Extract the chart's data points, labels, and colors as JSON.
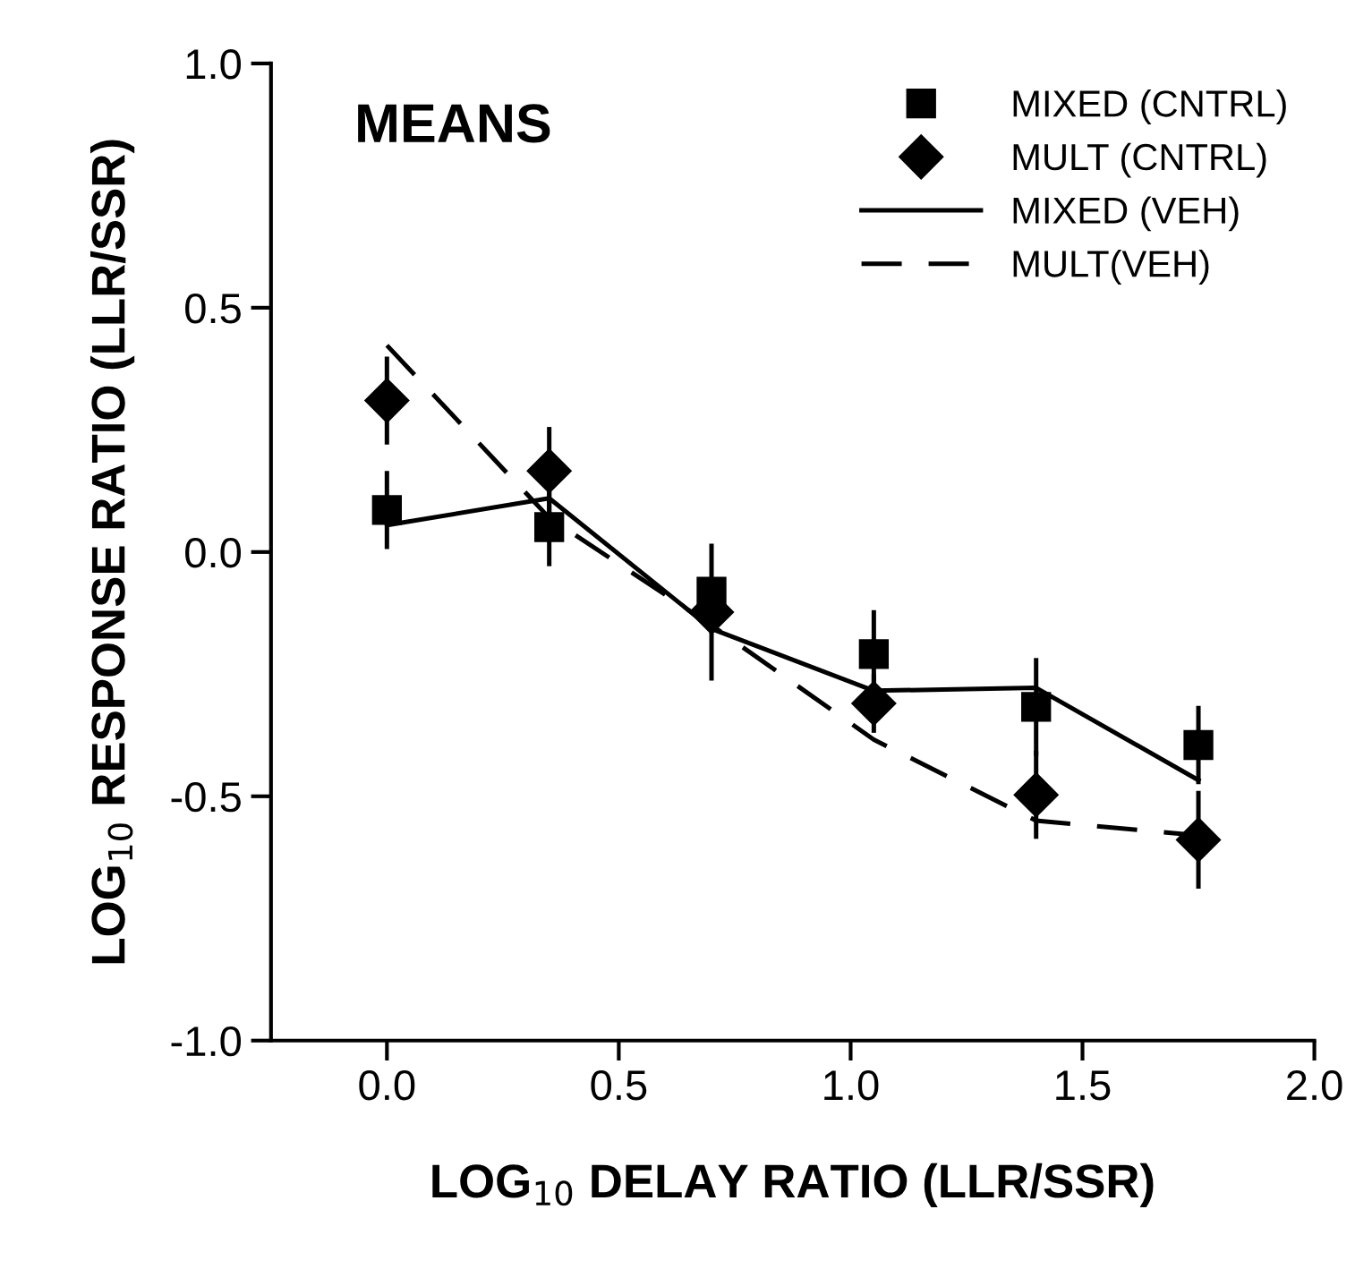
{
  "chart_data": {
    "type": "scatter",
    "xlabel": "LOG$_{10}$ DELAY RATIO (LLR/SSR)",
    "ylabel": "LOG$_{10}$ RESPONSE RATIO (LLR/SSR)",
    "annotations": [
      "MEANS"
    ],
    "x": [
      0,
      0.35,
      0.7,
      1.05,
      1.4,
      1.75
    ],
    "xlim": [
      -0.25,
      2.0
    ],
    "xticks": [
      {
        "value": 0,
        "label": "0.0"
      },
      0.5,
      {
        "value": 1,
        "label": "1.0"
      },
      1.5,
      {
        "value": 2,
        "label": "2.0"
      }
    ],
    "ylim": [
      -1.0,
      1.0
    ],
    "yticks": [
      {
        "value": -1,
        "label": "-1.0"
      },
      -0.5,
      {
        "value": 0,
        "label": "0.0"
      },
      0.5,
      {
        "value": 1,
        "label": "1.0"
      }
    ],
    "grid": false,
    "legend": "top right",
    "series": [
      {
        "name": "MIXED (CNTRL)",
        "marker": "square",
        "color": "#000000",
        "values": [
          0.086,
          0.051,
          -0.081,
          -0.209,
          -0.317,
          -0.395
        ],
        "errors": [
          0.08,
          0.08,
          null,
          0.09,
          0.1,
          0.08
        ]
      },
      {
        "name": "MULT (CNTRL)",
        "marker": "diamond",
        "color": "#000000",
        "values": [
          0.31,
          0.166,
          -0.123,
          -0.31,
          -0.497,
          -0.589
        ],
        "errors": [
          0.09,
          0.09,
          0.14,
          0.06,
          0.09,
          0.1
        ]
      },
      {
        "name": "MIXED (VEH)",
        "type": "line",
        "line_style": "solid",
        "marker": "none",
        "color": "#000000",
        "values": [
          0.055,
          0.11,
          -0.157,
          -0.284,
          -0.278,
          -0.467
        ]
      },
      {
        "name": "MULT(VEH)",
        "type": "line",
        "line_style": "dashed",
        "marker": "none",
        "color": "#000000",
        "values": [
          0.423,
          0.07,
          -0.15,
          -0.384,
          -0.55,
          -0.58
        ]
      }
    ]
  }
}
